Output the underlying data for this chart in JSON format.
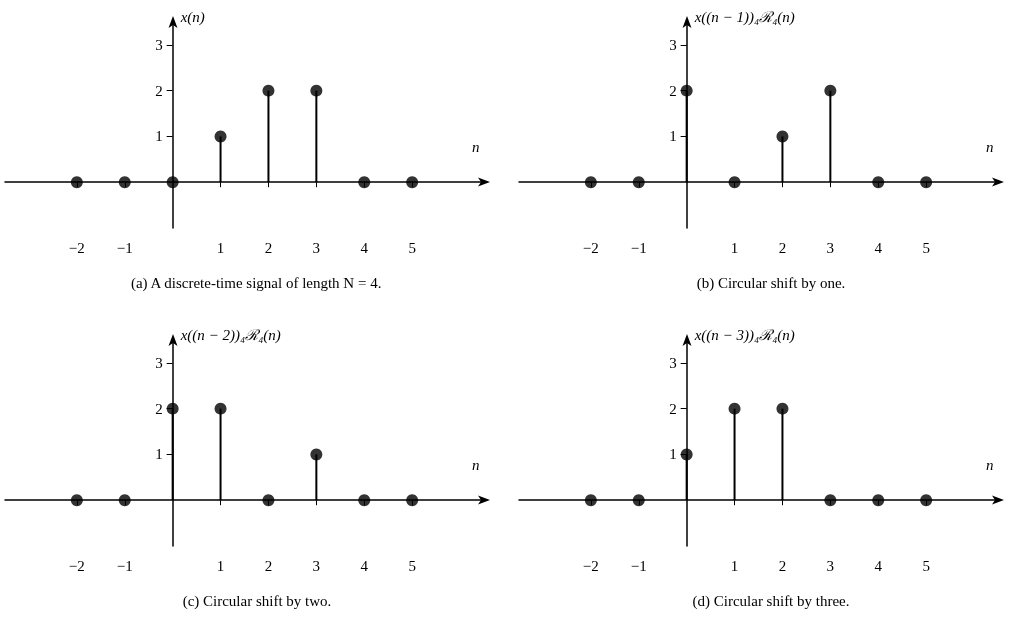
{
  "chart_data": [
    {
      "type": "lollipop",
      "ylabel": "x(n)",
      "xlabel": "n",
      "x": [
        -2,
        -1,
        0,
        1,
        2,
        3,
        4,
        5
      ],
      "values": [
        0,
        0,
        0,
        1,
        2,
        2,
        0,
        0
      ],
      "color": "#000000",
      "marker": "circle",
      "xlim": [
        -3.5,
        6.5
      ],
      "ylim": [
        -1,
        3.5
      ],
      "xticks": [
        -2,
        -1,
        1,
        2,
        3,
        4,
        5
      ],
      "yticks": [
        1,
        2,
        3
      ],
      "grid": false,
      "annotations": [
        "(a) A discrete-time signal of length N = 4."
      ]
    },
    {
      "type": "lollipop",
      "ylabel": "x((n − 1))₄ℛ₄(n)",
      "xlabel": "n",
      "x": [
        -2,
        -1,
        0,
        1,
        2,
        3,
        4,
        5
      ],
      "values": [
        0,
        0,
        2,
        0,
        1,
        2,
        0,
        0
      ],
      "color": "#000000",
      "marker": "circle",
      "xlim": [
        -3.5,
        6.5
      ],
      "ylim": [
        -1,
        3.5
      ],
      "xticks": [
        -2,
        -1,
        1,
        2,
        3,
        4,
        5
      ],
      "yticks": [
        1,
        2,
        3
      ],
      "grid": false,
      "annotations": [
        "(b) Circular shift by one."
      ]
    },
    {
      "type": "lollipop",
      "ylabel": "x((n − 2))₄ℛ₄(n)",
      "xlabel": "n",
      "x": [
        -2,
        -1,
        0,
        1,
        2,
        3,
        4,
        5
      ],
      "values": [
        0,
        0,
        2,
        2,
        0,
        1,
        0,
        0
      ],
      "color": "#000000",
      "marker": "circle",
      "xlim": [
        -3.5,
        6.5
      ],
      "ylim": [
        -1,
        3.5
      ],
      "xticks": [
        -2,
        -1,
        1,
        2,
        3,
        4,
        5
      ],
      "yticks": [
        1,
        2,
        3
      ],
      "grid": false,
      "annotations": [
        "(c) Circular shift by two."
      ]
    },
    {
      "type": "lollipop",
      "ylabel": "x((n − 3))₄ℛ₄(n)",
      "xlabel": "n",
      "x": [
        -2,
        -1,
        0,
        1,
        2,
        3,
        4,
        5
      ],
      "values": [
        0,
        0,
        1,
        2,
        2,
        0,
        0,
        0
      ],
      "color": "#000000",
      "marker": "circle",
      "xlim": [
        -3.5,
        6.5
      ],
      "ylim": [
        -1,
        3.5
      ],
      "xticks": [
        -2,
        -1,
        1,
        2,
        3,
        4,
        5
      ],
      "yticks": [
        1,
        2,
        3
      ],
      "grid": false,
      "annotations": [
        "(d) Circular shift by three."
      ]
    }
  ]
}
